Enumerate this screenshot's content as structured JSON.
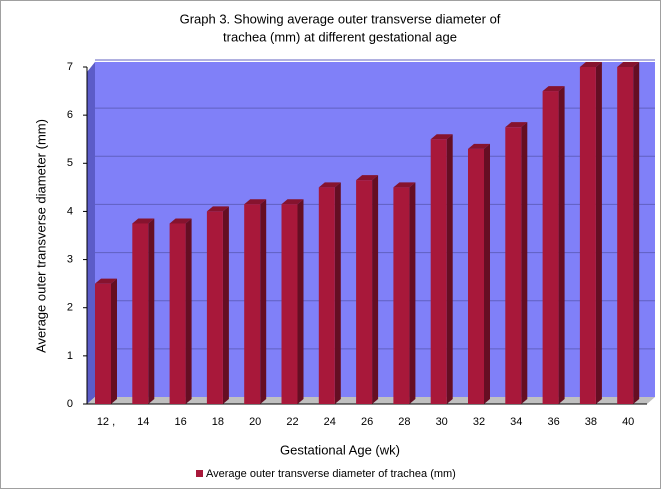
{
  "chart_data": {
    "type": "bar",
    "title": [
      "Graph 3. Showing average outer transverse diameter of",
      "trachea (mm) at different gestational age"
    ],
    "x_label": "Gestational Age (wk)",
    "y_label": "Average outer transverse diameter (mm)",
    "categories": [
      "12 ,",
      "14",
      "16",
      "18",
      "20",
      "22",
      "24",
      "26",
      "28",
      "30",
      "32",
      "34",
      "36",
      "38",
      "40"
    ],
    "series": [
      {
        "name": "Average outer transverse diameter of trachea (mm)",
        "color": "#a8183a",
        "values": [
          2.5,
          3.75,
          3.75,
          4.0,
          4.15,
          4.15,
          4.5,
          4.65,
          4.5,
          5.5,
          5.3,
          5.75,
          6.5,
          7.0,
          7.0
        ]
      }
    ],
    "ylim": [
      0,
      7
    ],
    "yticks": [
      0,
      1,
      2,
      3,
      4,
      5,
      6,
      7
    ],
    "grid": true,
    "legend": "bottom"
  }
}
